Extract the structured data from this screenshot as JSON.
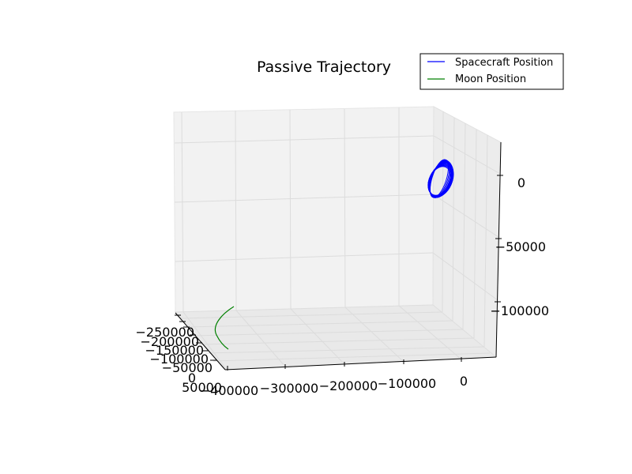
{
  "chart_data": {
    "type": "line",
    "projection": "3d",
    "title": "Passive Trajectory",
    "xlabel": "",
    "ylabel": "",
    "zlabel": "",
    "grid": true,
    "legend_position": "top-right",
    "x_ticks": [
      "−400000",
      "−300000",
      "−200000",
      "−100000",
      "0"
    ],
    "y_ticks": [
      "−250000",
      "−200000",
      "−150000",
      "−100000",
      "−50000",
      "0",
      "50000"
    ],
    "z_ticks": [
      "0",
      "−50000",
      "−100000"
    ],
    "series": [
      {
        "name": "Spacecraft Position",
        "color": "#0000ff",
        "shape": "many overlapping closed loops (periodic orbit)",
        "approx_center": {
          "x": 10000,
          "y": 0,
          "z": 0
        }
      },
      {
        "name": "Moon Position",
        "color": "#008000",
        "shape": "short arc",
        "approx_range": {
          "x": [
            -400000,
            -380000
          ],
          "y": [
            -250000,
            50000
          ],
          "z": [
            -130000,
            -110000
          ]
        }
      }
    ]
  }
}
